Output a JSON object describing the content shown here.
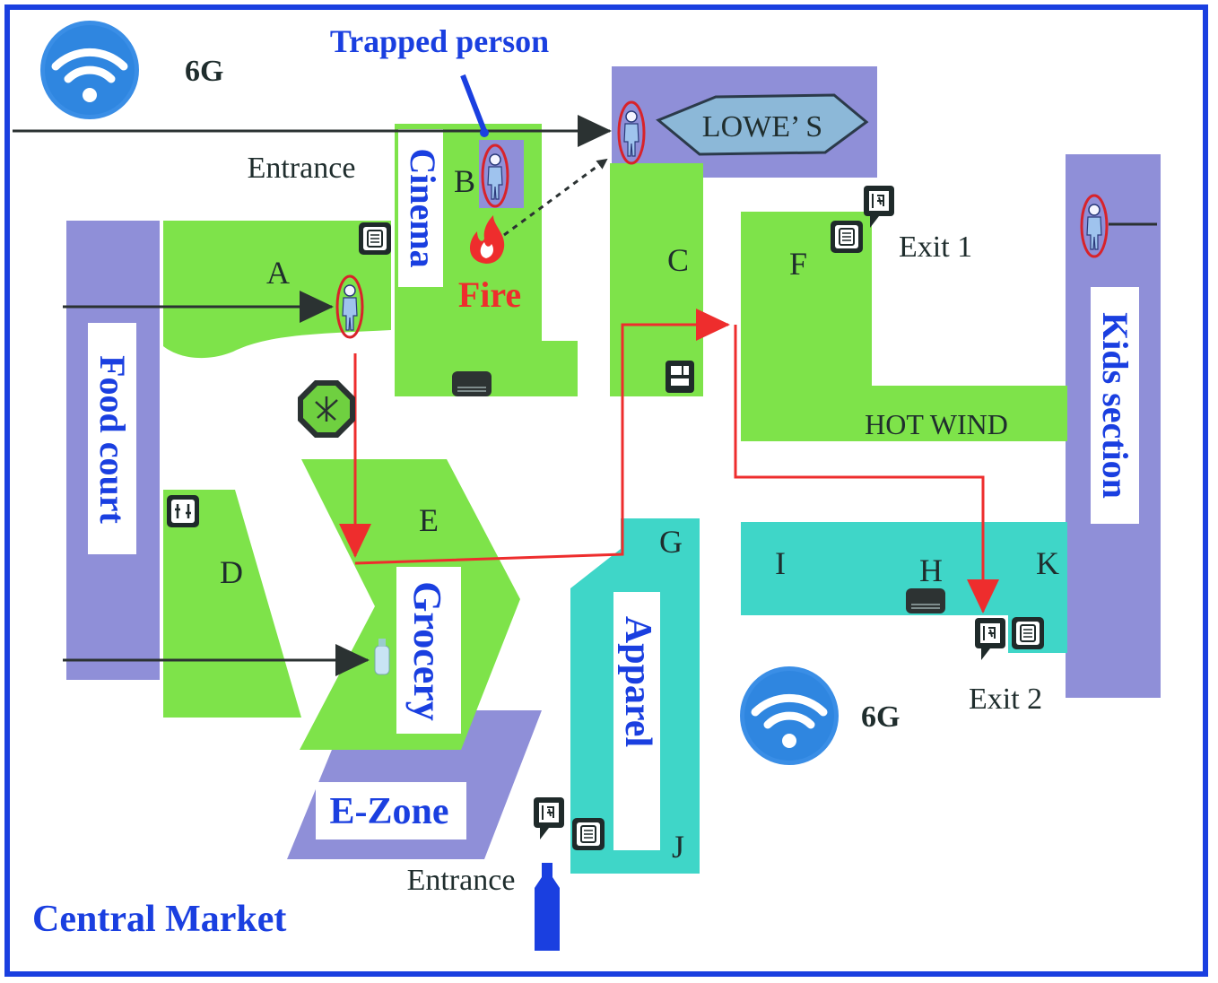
{
  "network": {
    "label_top": "6G",
    "label_bottom": "6G"
  },
  "annotations": {
    "trapped_person": "Trapped person",
    "fire": "Fire",
    "entrance_top": "Entrance",
    "entrance_bottom": "Entrance",
    "exit1": "Exit 1",
    "exit2": "Exit 2",
    "hot_wind": "HOT WIND",
    "market_name": "Central Market"
  },
  "stores": {
    "cinema": "Cinema",
    "lowes": "LOWE’ S",
    "kids": "Kids section",
    "food_court": "Food court",
    "grocery": "Grocery",
    "apparel": "Apparel",
    "ezone": "E-Zone"
  },
  "zones": {
    "A": "A",
    "B": "B",
    "C": "C",
    "D": "D",
    "E": "E",
    "F": "F",
    "G": "G",
    "H": "H",
    "I": "I",
    "J": "J",
    "K": "K"
  },
  "colors": {
    "border": "#1a3fe0",
    "green": "#7ee34a",
    "purple": "#8f8fd8",
    "teal": "#3fd6c8",
    "route": "#ee2d2d",
    "person_ring": "#d8232a"
  }
}
